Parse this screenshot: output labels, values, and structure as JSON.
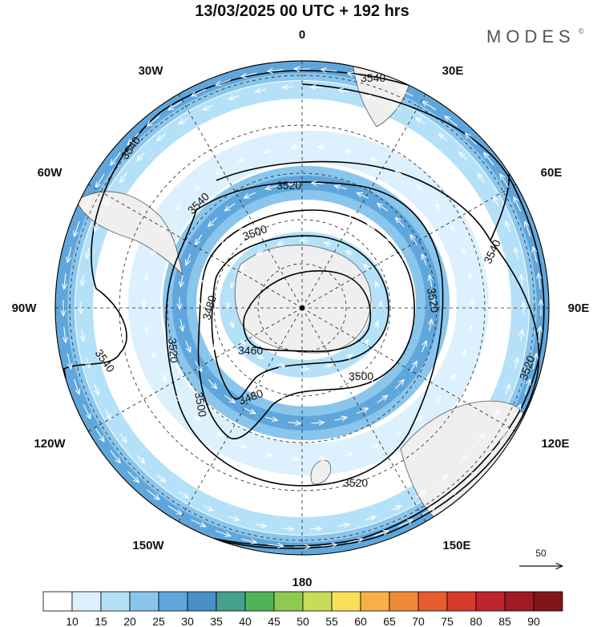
{
  "header": {
    "title": "13/03/2025  00 UTC  + 192 hrs",
    "logo": "MODES",
    "logo_mark": "©"
  },
  "map": {
    "projection": "south-polar-stereographic",
    "longitude_labels": [
      {
        "text": "0",
        "lon": 0
      },
      {
        "text": "30E",
        "lon": 30
      },
      {
        "text": "60E",
        "lon": 60
      },
      {
        "text": "90E",
        "lon": 90
      },
      {
        "text": "120E",
        "lon": 120
      },
      {
        "text": "150E",
        "lon": 150
      },
      {
        "text": "180",
        "lon": 180
      },
      {
        "text": "150W",
        "lon": -150
      },
      {
        "text": "120W",
        "lon": -120
      },
      {
        "text": "90W",
        "lon": -90
      },
      {
        "text": "60W",
        "lon": -60
      },
      {
        "text": "30W",
        "lon": -30
      }
    ],
    "contour_labels": [
      "3540",
      "3540",
      "3540",
      "3540",
      "3540",
      "3520",
      "3520",
      "3520",
      "3520",
      "3520",
      "3520",
      "3500",
      "3500",
      "3500",
      "3480",
      "3480",
      "3460"
    ],
    "vector_reference": "50",
    "colors": {
      "land": "#efefef",
      "contour": "#000000",
      "graticule": "#222222",
      "vector": "#ffffff"
    }
  },
  "colorbar": {
    "ticks": [
      "10",
      "15",
      "20",
      "25",
      "30",
      "35",
      "40",
      "45",
      "50",
      "55",
      "60",
      "65",
      "70",
      "75",
      "80",
      "85",
      "90"
    ],
    "colors": [
      "#ffffff",
      "#dcf1fd",
      "#b5e1f8",
      "#8ac6ec",
      "#5fa6dc",
      "#4790c8",
      "#45a08e",
      "#4fb458",
      "#8cca50",
      "#c8dc58",
      "#f9df5a",
      "#f7b046",
      "#f08a3a",
      "#e85c2e",
      "#d83a2c",
      "#c0222c",
      "#a01a24",
      "#82141c"
    ]
  }
}
